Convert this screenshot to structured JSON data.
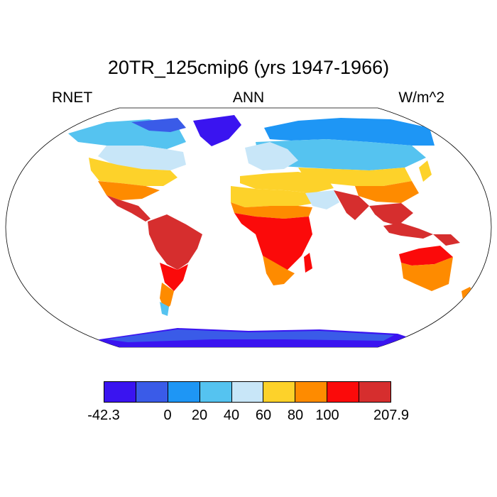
{
  "title": "20TR_125cmip6 (yrs 1947-1966)",
  "left_label": "RNET",
  "center_label": "ANN",
  "right_label": "W/m^2",
  "colorbar": {
    "colors": [
      "#3a14f0",
      "#3a5be8",
      "#1e96f5",
      "#55c3f0",
      "#c8e6f8",
      "#fdd22a",
      "#fe8b00",
      "#fb0a0a",
      "#d62e2e"
    ],
    "labels": [
      "-42.3",
      "0",
      "20",
      "40",
      "60",
      "80",
      "100",
      "207.9"
    ]
  },
  "regions": [
    {
      "name": "Greenland",
      "level": 0
    },
    {
      "name": "Canada Arctic",
      "level": 1
    },
    {
      "name": "Siberia",
      "level": 3
    },
    {
      "name": "Sahara",
      "level": 5
    },
    {
      "name": "Amazon",
      "level": 8
    },
    {
      "name": "Central Africa",
      "level": 8
    },
    {
      "name": "Australia",
      "level": 6
    },
    {
      "name": "Antarctica",
      "level": 0
    }
  ]
}
